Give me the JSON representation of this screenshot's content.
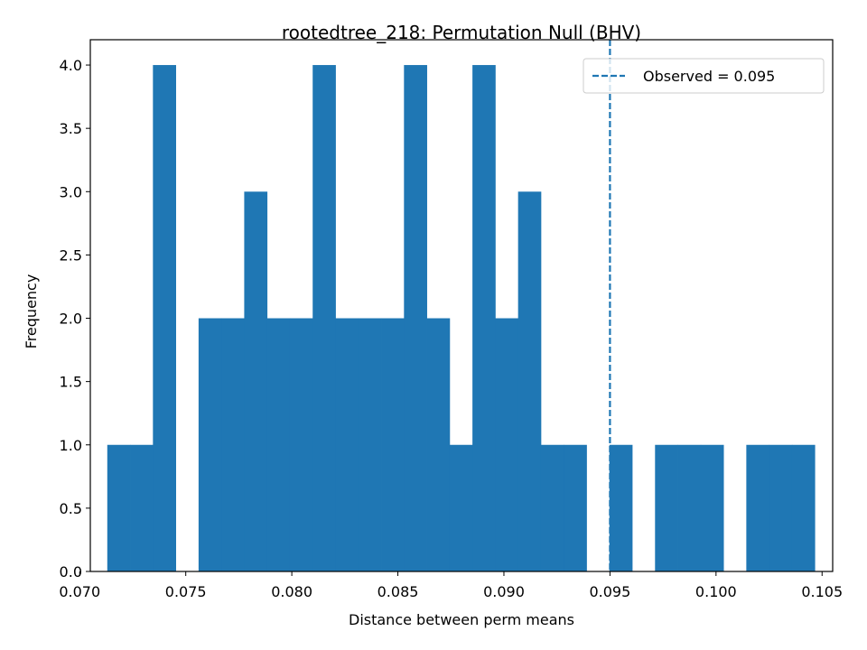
{
  "chart_data": {
    "type": "bar",
    "title": "rootedtree_218: Permutation Null (BHV)",
    "xlabel": "Distance between perm means",
    "ylabel": "Frequency",
    "xlim": [
      0.0705,
      0.1055
    ],
    "ylim": [
      0,
      4.2
    ],
    "bin_edges_start": 0.0713,
    "bin_width": 0.001076,
    "counts": [
      1,
      1,
      4,
      0,
      2,
      2,
      3,
      2,
      2,
      4,
      2,
      2,
      2,
      4,
      2,
      1,
      4,
      2,
      3,
      1,
      1,
      0,
      1,
      0,
      1,
      1,
      1,
      0,
      1,
      1,
      1
    ],
    "xticks": [
      "0.070",
      "0.075",
      "0.080",
      "0.085",
      "0.090",
      "0.095",
      "0.100",
      "0.105"
    ],
    "xtick_values": [
      0.07,
      0.075,
      0.08,
      0.085,
      0.09,
      0.095,
      0.1,
      0.105
    ],
    "yticks": [
      "0.0",
      "0.5",
      "1.0",
      "1.5",
      "2.0",
      "2.5",
      "3.0",
      "3.5",
      "4.0"
    ],
    "ytick_values": [
      0,
      0.5,
      1.0,
      1.5,
      2.0,
      2.5,
      3.0,
      3.5,
      4.0
    ],
    "observed": 0.095,
    "legend": {
      "label": "Observed = 0.095",
      "placement": "upper right"
    },
    "colors": {
      "bar": "#1f77b4",
      "observed_line": "#1f77b4"
    },
    "grid": false
  }
}
